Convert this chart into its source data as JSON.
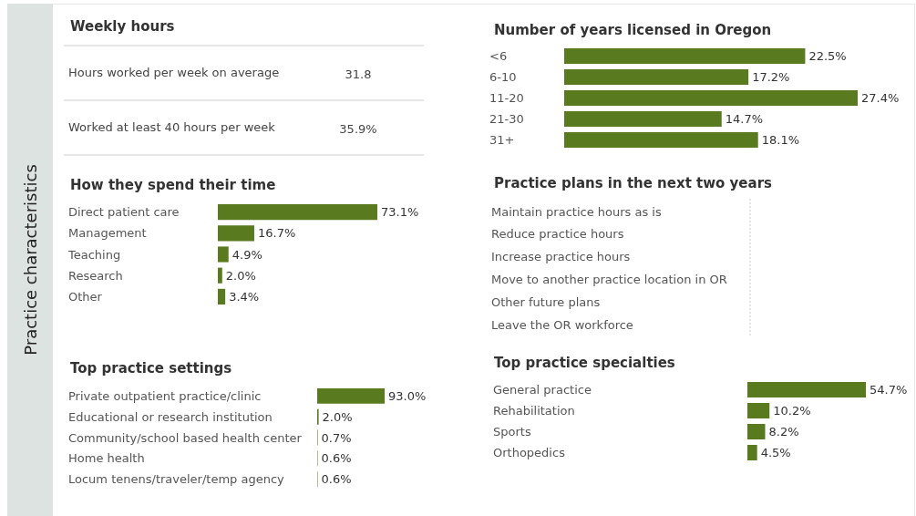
{
  "chart_data": [
    {
      "type": "other",
      "title": "Practice characteristics"
    },
    {
      "type": "other",
      "title": "Weekly hours",
      "annotations": [
        "Hours worked per week on average",
        "31.8",
        "Worked at least 40 hours per week",
        "35.9%"
      ]
    },
    {
      "type": "bar",
      "orientation": "horizontal",
      "title": "How they spend their time",
      "categories": [
        "Direct patient care",
        "Management",
        "Teaching",
        "Research",
        "Other"
      ],
      "values": [
        73.1,
        16.7,
        4.9,
        2.0,
        3.4
      ],
      "value_labels": [
        "73.1%",
        "16.7%",
        "4.9%",
        "2.0%",
        "3.4%"
      ],
      "color": "#5a7a1f",
      "tick_labels": "y"
    },
    {
      "type": "bar",
      "orientation": "horizontal",
      "title": "Top practice settings",
      "categories": [
        "Private outpatient practice/clinic",
        "Educational or research institution",
        "Community/school based health center",
        "Home health",
        "Locum tenens/traveler/temp agency"
      ],
      "values": [
        93.0,
        2.0,
        0.7,
        0.6,
        0.6
      ],
      "value_labels": [
        "93.0%",
        "2.0%",
        "0.7%",
        "0.6%",
        "0.6%"
      ],
      "color": "#5a7a1f",
      "tick_labels": "y"
    },
    {
      "type": "bar",
      "orientation": "horizontal",
      "title": "Number of years licensed in Oregon",
      "categories": [
        "<6",
        "6-10",
        "11-20",
        "21-30",
        "31+"
      ],
      "values": [
        22.5,
        17.2,
        27.4,
        14.7,
        18.1
      ],
      "value_labels": [
        "22.5%",
        "17.2%",
        "27.4%",
        "14.7%",
        "18.1%"
      ],
      "color": "#5a7a1f",
      "tick_labels": "y"
    },
    {
      "type": "other",
      "title": "Practice plans in the next two years",
      "annotations": [
        "Maintain practice hours as is",
        "Reduce practice hours",
        "Increase practice hours",
        "Move to another practice location in OR",
        "Other future plans",
        "Leave the OR workforce"
      ]
    },
    {
      "type": "bar",
      "orientation": "horizontal",
      "title": "Top practice specialties",
      "categories": [
        "General practice",
        "Rehabilitation",
        "Sports",
        "Orthopedics"
      ],
      "values": [
        54.7,
        10.2,
        8.2,
        4.5
      ],
      "value_labels": [
        "54.7%",
        "10.2%",
        "8.2%",
        "4.5%"
      ],
      "color": "#5a7a1f",
      "tick_labels": "y"
    }
  ]
}
